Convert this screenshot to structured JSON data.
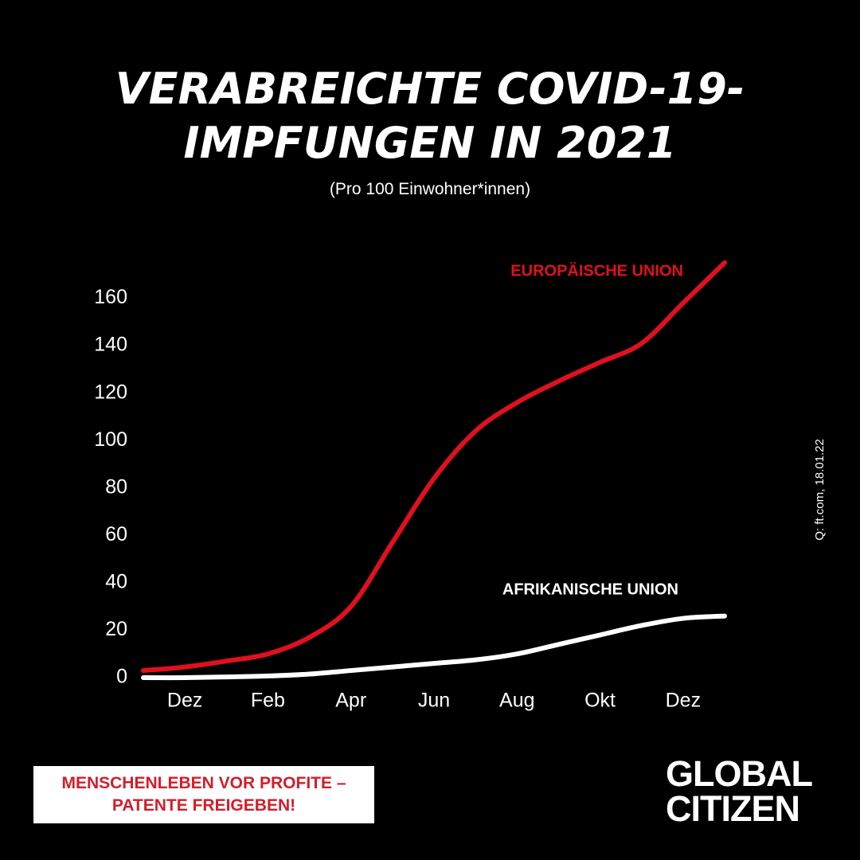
{
  "chart_data": {
    "type": "line",
    "title": "VERABREICHTE COVID-19-IMPFUNGEN IN 2021",
    "subtitle": "(Pro 100 Einwohner*innen)",
    "categories": [
      null,
      "Dez",
      null,
      "Feb",
      null,
      "Apr",
      null,
      "Jun",
      null,
      "Aug",
      null,
      "Okt",
      null,
      "Dez",
      null
    ],
    "series": [
      {
        "name": "EUROPÄISCHE UNION",
        "color": "#e0101e",
        "values": [
          3,
          4.5,
          7,
          10,
          17,
          30,
          57,
          84,
          104,
          116,
          125,
          133,
          141,
          158,
          175
        ]
      },
      {
        "name": "AFRIKANISCHE UNION",
        "color": "#ffffff",
        "values": [
          0,
          0,
          0.3,
          0.7,
          1.5,
          3,
          4.5,
          6,
          7.5,
          10,
          14,
          18,
          22,
          25,
          26
        ]
      }
    ],
    "ylim": [
      0,
      180
    ],
    "yticks": [
      0,
      20,
      40,
      60,
      80,
      100,
      120,
      140,
      160
    ],
    "grid": false,
    "source": "Q: ft.com, 18.01.22"
  },
  "banner": "MENSCHENLEBEN VOR PROFITE – PATENTE FREIGEBEN!",
  "logo": "GLOBAL CITIZEN"
}
